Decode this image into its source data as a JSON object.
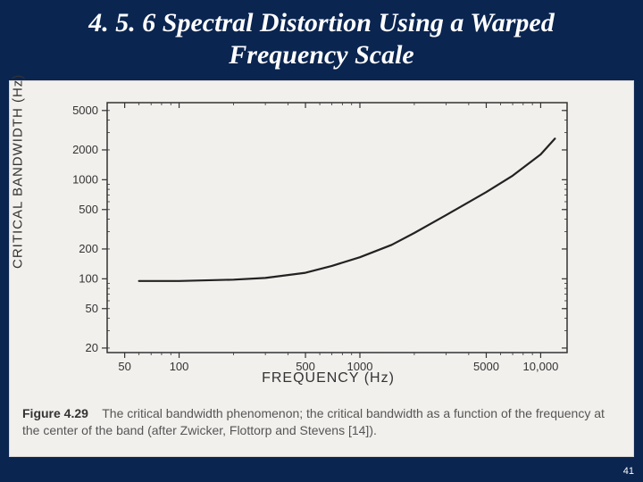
{
  "title": "4. 5. 6 Spectral Distortion Using a Warped Frequency Scale",
  "page_number": "41",
  "caption_label": "Figure 4.29",
  "caption_text": "The critical bandwidth phenomenon; the critical bandwidth as a function of the frequency at the center of the band (after Zwicker, Flottorp and Stevens [14]).",
  "chart": {
    "type": "line",
    "xlabel": "FREQUENCY (Hz)",
    "ylabel": "CRITICAL BANDWIDTH (Hz)",
    "xscale": "log",
    "yscale": "log",
    "xlim": [
      40,
      14000
    ],
    "ylim": [
      18,
      6000
    ],
    "xtick_values": [
      50,
      100,
      500,
      1000,
      5000,
      10000
    ],
    "xtick_labels": [
      "50",
      "100",
      "500",
      "1000",
      "5000",
      "10,000"
    ],
    "ytick_values": [
      20,
      50,
      100,
      200,
      500,
      1000,
      2000,
      5000
    ],
    "ytick_labels": [
      "20",
      "50",
      "100",
      "200",
      "500",
      "1000",
      "2000",
      "5000"
    ],
    "series": {
      "x": [
        60,
        100,
        200,
        300,
        500,
        700,
        1000,
        1500,
        2000,
        3000,
        5000,
        7000,
        10000,
        12000
      ],
      "y": [
        95,
        95,
        98,
        102,
        115,
        135,
        165,
        220,
        290,
        440,
        750,
        1100,
        1800,
        2600
      ]
    },
    "line_color": "#222222",
    "line_width": 2.2,
    "axis_color": "#333333",
    "tick_len": 6,
    "background_color": "#f2f0ed",
    "plot_background": "#f2f0ed",
    "label_fontsize": 15,
    "tick_fontsize": 13,
    "title_fontsize": 30
  },
  "colors": {
    "slide_bg": "#0a2550",
    "panel_bg": "#f2f0ed",
    "title_color": "#ffffff"
  }
}
